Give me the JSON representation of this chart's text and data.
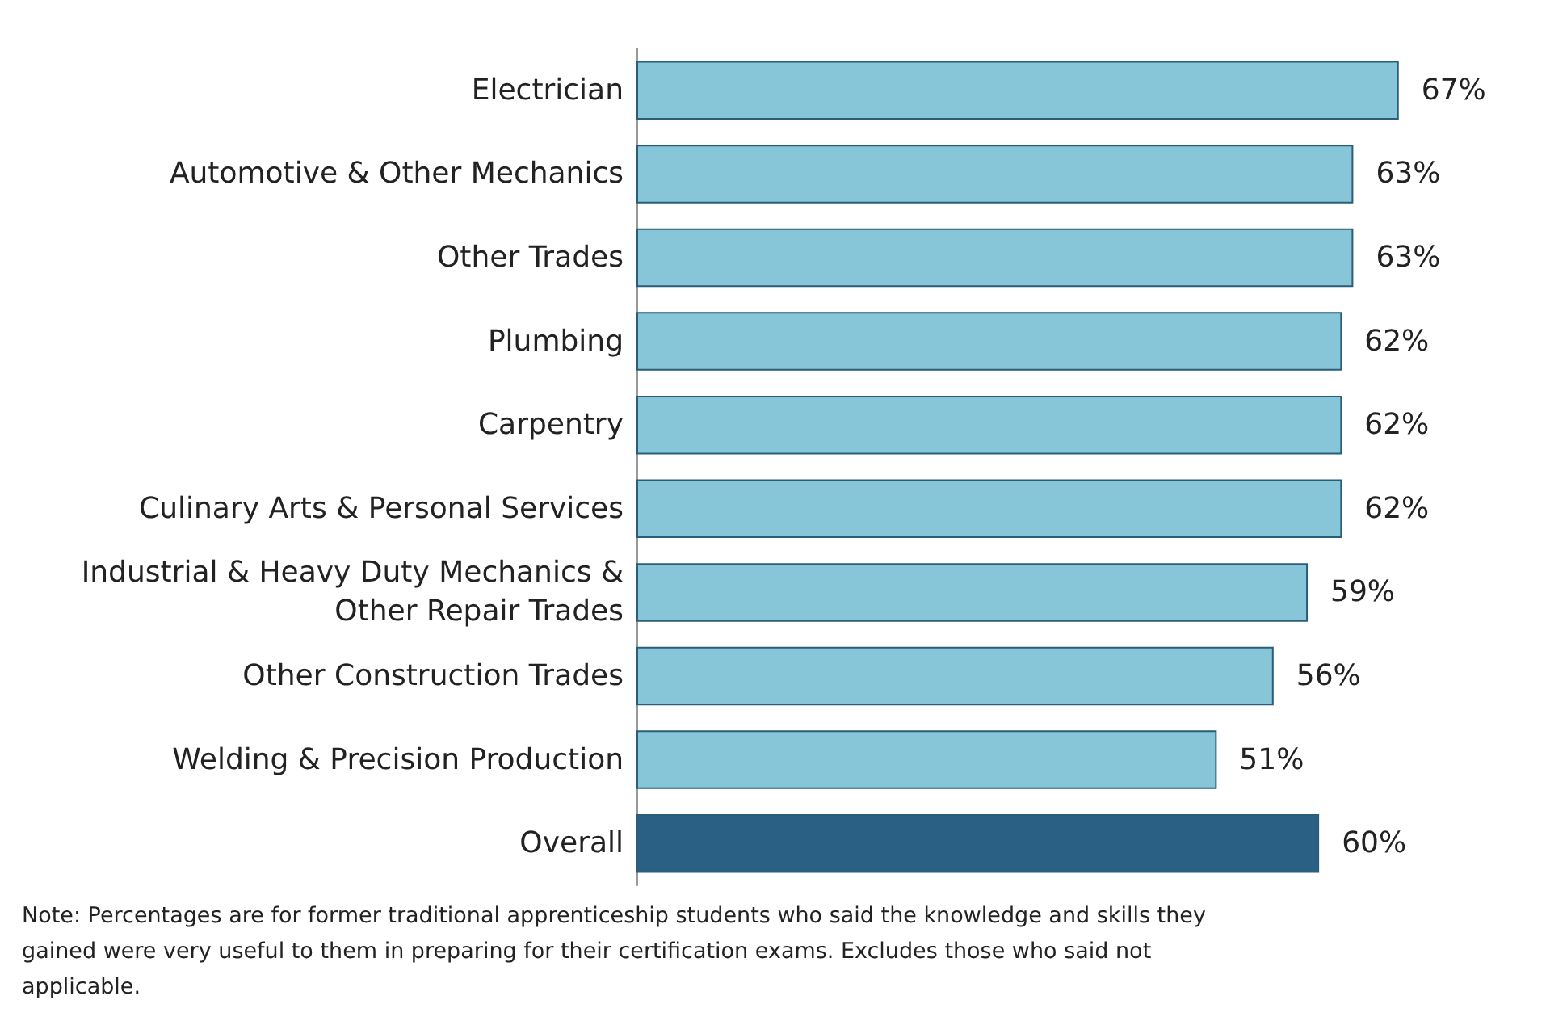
{
  "chart_data": {
    "type": "bar",
    "orientation": "horizontal",
    "categories": [
      "Electrician",
      "Automotive & Other Mechanics",
      "Other Trades",
      "Plumbing",
      "Carpentry",
      "Culinary Arts & Personal Services",
      "Industrial & Heavy Duty Mechanics & Other Repair Trades",
      "Other Construction Trades",
      "Welding & Precision Production",
      "Overall"
    ],
    "values": [
      67,
      63,
      63,
      62,
      62,
      62,
      59,
      56,
      51,
      60
    ],
    "colors": [
      "#87c6d8",
      "#87c6d8",
      "#87c6d8",
      "#87c6d8",
      "#87c6d8",
      "#87c6d8",
      "#87c6d8",
      "#87c6d8",
      "#87c6d8",
      "#2a6083"
    ],
    "value_labels": [
      "67%",
      "63%",
      "63%",
      "62%",
      "62%",
      "62%",
      "59%",
      "56%",
      "51%",
      "60%"
    ],
    "annotations": [
      "Note: Percentages are for former traditional apprenticeship students who said the knowledge and skills they gained were very useful to them in preparing for their certification exams. Excludes those who said not applicable."
    ]
  }
}
